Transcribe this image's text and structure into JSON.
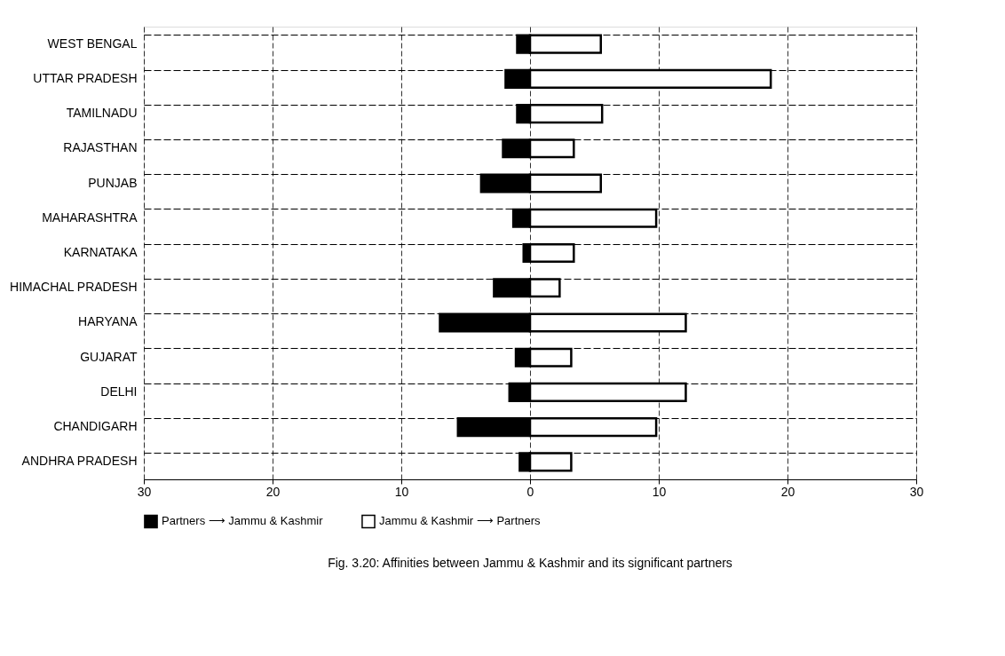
{
  "chart_data": {
    "type": "bar",
    "orientation": "horizontal",
    "categories": [
      "WEST BENGAL",
      "UTTAR PRADESH",
      "TAMILNADU",
      "RAJASTHAN",
      "PUNJAB",
      "MAHARASHTRA",
      "KARNATAKA",
      "HIMACHAL PRADESH",
      "HARYANA",
      "GUJARAT",
      "DELHI",
      "CHANDIGARH",
      "ANDHRA PRADESH"
    ],
    "series": [
      {
        "name": "Partners ⟶ Jammu & Kashmir",
        "color": "#000000",
        "values": [
          -1.0,
          -1.9,
          -1.0,
          -2.1,
          -3.8,
          -1.3,
          -0.5,
          -2.8,
          -7.0,
          -1.1,
          -1.6,
          -5.6,
          -0.8
        ]
      },
      {
        "name": "Jammu & Kashmir ⟶ Partners",
        "color": "#ffffff",
        "values": [
          5.5,
          18.7,
          5.6,
          3.4,
          5.5,
          9.8,
          3.4,
          2.3,
          12.1,
          3.2,
          12.1,
          9.8,
          3.2
        ]
      }
    ],
    "xlim": [
      -30,
      30
    ],
    "xticks": [
      {
        "value": -30,
        "label": "30"
      },
      {
        "value": -20,
        "label": "20"
      },
      {
        "value": -10,
        "label": "10"
      },
      0,
      10,
      20,
      30
    ],
    "grid": true,
    "legend": "bottom",
    "stacked": true,
    "annotations": [
      "Fig. 3.20: Affinities between Jammu & Kashmir and its significant partners"
    ]
  }
}
